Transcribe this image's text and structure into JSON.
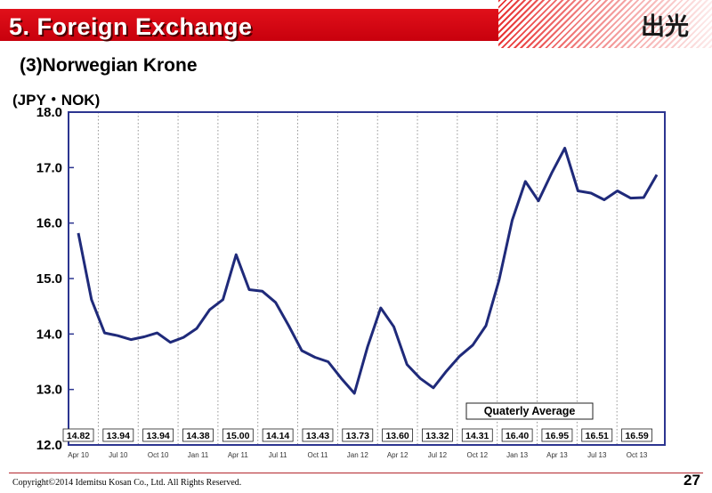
{
  "header": {
    "title": "5. Foreign Exchange",
    "logo_text": "出光",
    "colors": {
      "band": "#d3000f",
      "accent": "#b3272e"
    }
  },
  "subtitle": "(3)Norwegian Krone",
  "footer": {
    "copyright": "Copyright©2014 Idemitsu Kosan Co., Ltd. All Rights Reserved.",
    "page_number": "27"
  },
  "chart_data": {
    "type": "line",
    "title": "",
    "ylabel": "(JPY・NOK)",
    "ylim": [
      12.0,
      18.0
    ],
    "yticks": [
      "12.0",
      "13.0",
      "14.0",
      "15.0",
      "16.0",
      "17.0",
      "18.0"
    ],
    "xtick_labels": [
      "Apr 10",
      "Jul 10",
      "Oct 10",
      "Jan 11",
      "Apr 11",
      "Jul 11",
      "Oct 11",
      "Jan 12",
      "Apr 12",
      "Jul 12",
      "Oct 12",
      "Jan 13",
      "Apr 13",
      "Jul 13",
      "Oct 13"
    ],
    "line_color": "#1f2a7a",
    "frame_color": "#2c3590",
    "grid": "dotted vertical lines at quarter boundaries",
    "series": [
      {
        "values": [
          15.82,
          14.62,
          14.02,
          13.97,
          13.9,
          13.95,
          14.02,
          13.85,
          13.94,
          14.1,
          14.44,
          14.62,
          15.43,
          14.8,
          14.77,
          14.57,
          14.15,
          13.7,
          13.58,
          13.5,
          13.2,
          12.93,
          13.77,
          14.47,
          14.13,
          13.45,
          13.2,
          13.03,
          13.33,
          13.6,
          13.8,
          14.15,
          14.97,
          16.05,
          16.75,
          16.4,
          16.9,
          17.35,
          16.58,
          16.54,
          16.42,
          16.58,
          16.45,
          16.46,
          16.87
        ]
      }
    ],
    "annotation": "Quaterly Average",
    "quarterly_averages": [
      "14.82",
      "13.94",
      "13.94",
      "14.38",
      "15.00",
      "14.14",
      "13.43",
      "13.73",
      "13.60",
      "13.32",
      "14.31",
      "16.40",
      "16.95",
      "16.51",
      "16.59"
    ]
  }
}
